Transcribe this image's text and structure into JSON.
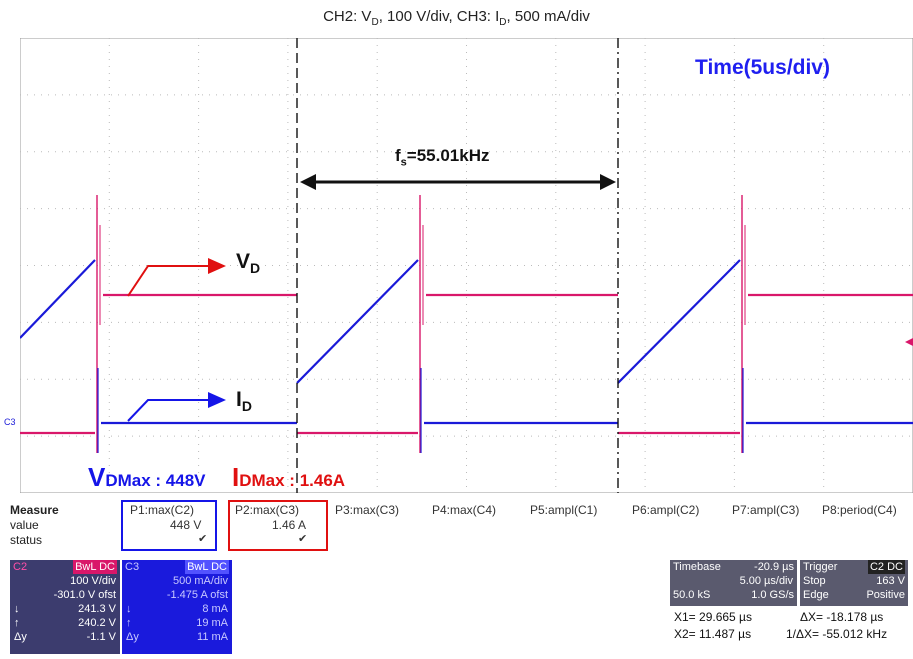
{
  "title": "CH2: Vᴅ, 100 V/div, CH3: Iᴅ, 500 mA/div",
  "title_parts": {
    "a": "CH2: V",
    "s1": "D",
    "b": ", 100 V/div, CH3: I",
    "s2": "D",
    "c": ", 500 mA/div"
  },
  "annotations": {
    "time": "Time(5us/div)",
    "freq_f": "f",
    "freq_sub": "s",
    "freq_val": "=55.01kHz",
    "vd_main": "V",
    "vd_sub": "D",
    "id_main": "I",
    "id_sub": "D",
    "vdmax_main": "V",
    "vdmax_sub": "DMax : 448V",
    "idmax_main": "I",
    "idmax_sub": "DMax : 1.46A",
    "c3_marker": "C3"
  },
  "measure": {
    "header": "Measure",
    "rows": [
      "value",
      "status"
    ],
    "columns": [
      {
        "label": "P1:max(C2)",
        "value": "448 V"
      },
      {
        "label": "P2:max(C3)",
        "value": "1.46 A"
      },
      {
        "label": "P3:max(C3)",
        "value": ""
      },
      {
        "label": "P4:max(C4)",
        "value": ""
      },
      {
        "label": "P5:ampl(C1)",
        "value": ""
      },
      {
        "label": "P6:ampl(C2)",
        "value": ""
      },
      {
        "label": "P7:ampl(C3)",
        "value": ""
      },
      {
        "label": "P8:period(C4)",
        "value": ""
      }
    ],
    "check": "✔"
  },
  "c2_panel": {
    "name": "C2",
    "badge": "BwL DC",
    "scale": "100 V/div",
    "offset": "-301.0 V ofst",
    "down_arrow": "↓",
    "up_arrow": "↑",
    "delta_label": "Δy",
    "v1": "241.3 V",
    "v2": "240.2 V",
    "dy": "-1.1 V"
  },
  "c3_panel": {
    "name": "C3",
    "badge": "BwL DC",
    "scale": "500 mA/div",
    "offset": "-1.475 A ofst",
    "down_arrow": "↓",
    "up_arrow": "↑",
    "delta_label": "Δy",
    "v1": "8 mA",
    "v2": "19 mA",
    "dy": "11 mA"
  },
  "timebase": {
    "label": "Timebase",
    "delay": "-20.9 µs",
    "div": "5.00 µs/div",
    "samples": "50.0 kS",
    "rate": "1.0 GS/s"
  },
  "trigger": {
    "label": "Trigger",
    "badge": "C2 DC",
    "mode": "Stop",
    "level": "163 V",
    "type": "Edge",
    "slope": "Positive"
  },
  "cursors": {
    "x1": "X1= 29.665 µs",
    "dx": "ΔX=  -18.178 µs",
    "x2": "X2= 11.487 µs",
    "inv_dx": "1/ΔX=  -55.012 kHz"
  },
  "colors": {
    "vd_trace": "#d9176a",
    "id_trace": "#1a1ad8",
    "accent_blue": "#1515e8",
    "accent_red": "#e01010"
  }
}
